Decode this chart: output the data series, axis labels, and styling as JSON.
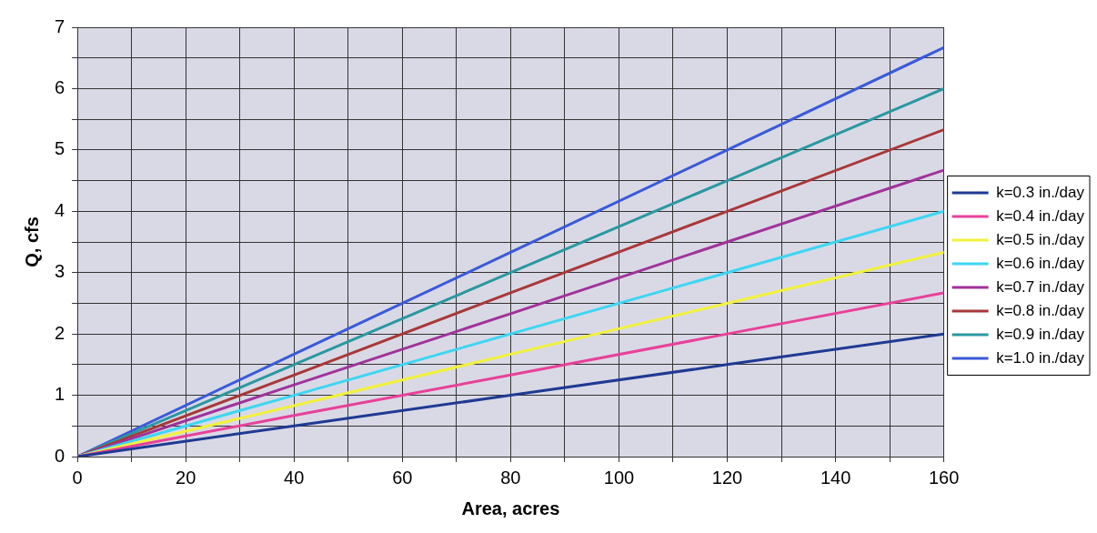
{
  "chart_data": {
    "type": "line",
    "xlabel": "Area, acres",
    "ylabel": "Q, cfs",
    "x": [
      0,
      40,
      80,
      120,
      160
    ],
    "series": [
      {
        "name": "k=0.3 in./day",
        "color": "#1f3a93",
        "values": [
          0,
          0.5,
          1,
          1.5,
          2
        ]
      },
      {
        "name": "k=0.4 in./day",
        "color": "#e8409a",
        "values": [
          0,
          0.67,
          1.33,
          2,
          2.67
        ]
      },
      {
        "name": "k=0.5 in./day",
        "color": "#f2f23c",
        "values": [
          0,
          0.83,
          1.67,
          2.5,
          3.33
        ]
      },
      {
        "name": "k=0.6 in./day",
        "color": "#3cd6f2",
        "values": [
          0,
          1,
          2,
          3,
          4
        ]
      },
      {
        "name": "k=0.7 in./day",
        "color": "#a0329a",
        "values": [
          0,
          1.17,
          2.33,
          3.5,
          4.67
        ]
      },
      {
        "name": "k=0.8 in./day",
        "color": "#a83838",
        "values": [
          0,
          1.33,
          2.67,
          4,
          5.33
        ]
      },
      {
        "name": "k=0.9 in./day",
        "color": "#2a98a0",
        "values": [
          0,
          1.5,
          3,
          4.5,
          6
        ]
      },
      {
        "name": "k=1.0 in./day",
        "color": "#3a5ad8",
        "values": [
          0,
          1.67,
          3.33,
          5,
          6.67
        ]
      }
    ],
    "xlim": [
      0,
      160
    ],
    "xticks": [
      0,
      {
        "value": 10,
        "label": null
      },
      20,
      {
        "value": 30,
        "label": null
      },
      40,
      {
        "value": 50,
        "label": null
      },
      60,
      {
        "value": 70,
        "label": null
      },
      80,
      {
        "value": 90,
        "label": null
      },
      100,
      {
        "value": 110,
        "label": null
      },
      120,
      {
        "value": 130,
        "label": null
      },
      140,
      {
        "value": 150,
        "label": null
      },
      160
    ],
    "ylim": [
      0,
      7
    ],
    "yticks": [
      0,
      {
        "value": 0.5,
        "label": null
      },
      1,
      {
        "value": 1.5,
        "label": null
      },
      2,
      {
        "value": 2.5,
        "label": null
      },
      3,
      {
        "value": 3.5,
        "label": null
      },
      4,
      {
        "value": 4.5,
        "label": null
      },
      5,
      {
        "value": 5.5,
        "label": null
      },
      6,
      {
        "value": 6.5,
        "label": null
      },
      7
    ],
    "grid": true,
    "legend": "right",
    "marker": "none",
    "line_style": "solid"
  }
}
